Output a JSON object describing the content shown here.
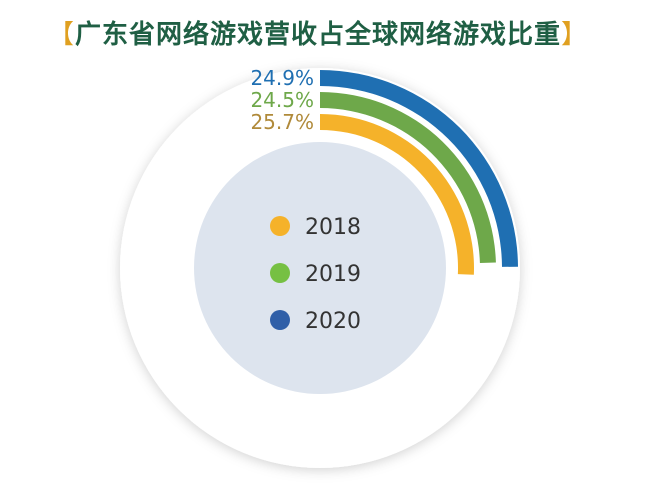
{
  "title_bracket_left": "【",
  "title_bracket_right": "】",
  "chart_data": {
    "type": "pie",
    "title": "广东省网络游戏营收占全球网络游戏比重",
    "series": [
      {
        "name": "2018",
        "value": 25.7,
        "label": "25.7%",
        "color": "#f5b22a",
        "label_color": "#b08a3a"
      },
      {
        "name": "2019",
        "value": 24.5,
        "label": "24.5%",
        "color": "#6ea84a",
        "label_color": "#6ea84a"
      },
      {
        "name": "2020",
        "value": 24.9,
        "label": "24.9%",
        "color": "#1f6fb2",
        "label_color": "#1f6fb2"
      }
    ],
    "legend": {
      "position": "center",
      "items": [
        {
          "name": "2018",
          "color": "#f5b22a"
        },
        {
          "name": "2019",
          "color": "#76c043"
        },
        {
          "name": "2020",
          "color": "#2f5fa8"
        }
      ]
    }
  }
}
